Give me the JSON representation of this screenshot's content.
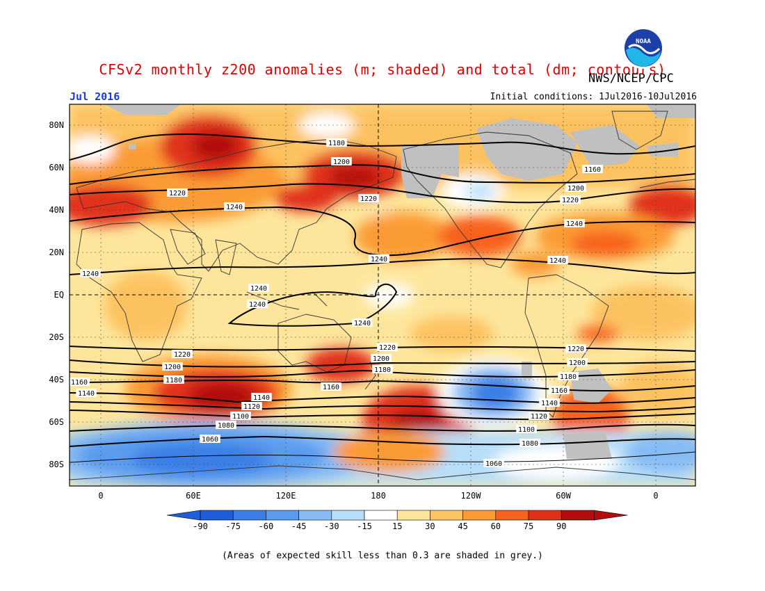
{
  "header": {
    "title": "CFSv2 monthly z200 anomalies (m; shaded) and total (dm; contours)",
    "org": "NWS/NCEP/CPC",
    "month": "Jul 2016",
    "initial_conditions": "Initial conditions: 1Jul2016-10Jul2016",
    "logo_text": "NOAA"
  },
  "colors": {
    "title": "#e00000",
    "month": "#1a3fd8",
    "land_outline": "#333333",
    "low_skill_grey": "#c0c0c0"
  },
  "map": {
    "lat_labels": [
      "80N",
      "60N",
      "40N",
      "20N",
      "EQ",
      "20S",
      "40S",
      "60S",
      "80S"
    ],
    "lon_labels": [
      "0",
      "60E",
      "120E",
      "180",
      "120W",
      "60W",
      "0"
    ]
  },
  "contours": [
    {
      "label": "1060"
    },
    {
      "label": "1080"
    },
    {
      "label": "1100"
    },
    {
      "label": "1120"
    },
    {
      "label": "1140"
    },
    {
      "label": "1160"
    },
    {
      "label": "1180"
    },
    {
      "label": "1200"
    },
    {
      "label": "1220"
    },
    {
      "label": "1240"
    }
  ],
  "colorbar": {
    "labels": [
      "-90",
      "-75",
      "-60",
      "-45",
      "-30",
      "-15",
      "15",
      "30",
      "45",
      "60",
      "75",
      "90"
    ],
    "colors": [
      "#1e5ed8",
      "#3a7fe6",
      "#5a9bee",
      "#86bbf4",
      "#b7def8",
      "#ffffff",
      "#fde69c",
      "#fdc261",
      "#fb9b36",
      "#f7621e",
      "#e1301a",
      "#b30d10"
    ]
  },
  "footnote": "(Areas of expected skill less than 0.3 are shaded in grey.)"
}
